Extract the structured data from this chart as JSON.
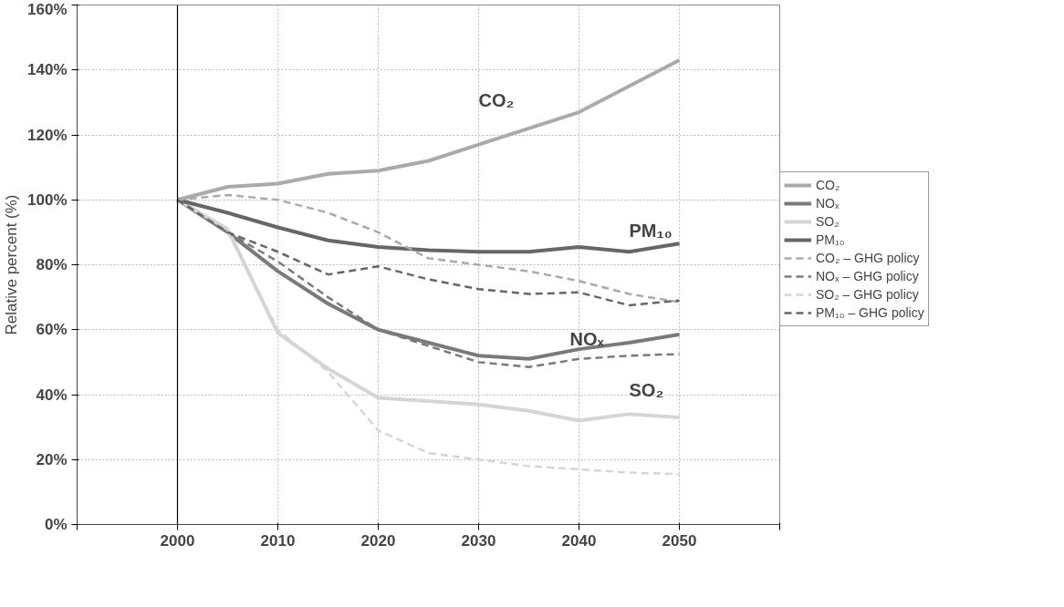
{
  "chart_data": {
    "type": "line",
    "ylabel": "Relative percent (%)",
    "x": [
      2000,
      2005,
      2010,
      2015,
      2020,
      2025,
      2030,
      2035,
      2040,
      2045,
      2050
    ],
    "series": [
      {
        "name": "CO₂",
        "color": "#aaaaaa",
        "values": [
          100,
          104,
          105,
          108,
          109,
          112,
          117,
          122,
          127,
          135,
          143
        ]
      },
      {
        "name": "NOₓ",
        "color": "#7a7a7a",
        "values": [
          100,
          90,
          78,
          68,
          60,
          56,
          52,
          51,
          54,
          56,
          58.5
        ]
      },
      {
        "name": "SO₂",
        "color": "#d5d5d5",
        "values": [
          100,
          91,
          59,
          48,
          39,
          38,
          37,
          35,
          32,
          34,
          33
        ]
      },
      {
        "name": "PM₁₀",
        "color": "#666666",
        "values": [
          100,
          96,
          91.5,
          87.5,
          85.5,
          84.5,
          84,
          84,
          85.5,
          84,
          86.5
        ]
      },
      {
        "name": "CO₂ – GHG policy",
        "color": "#aaaaaa",
        "line_style": "dashed",
        "values": [
          100,
          101.5,
          100,
          96,
          90,
          82,
          80,
          78,
          75,
          71,
          68.5
        ]
      },
      {
        "name": "NOₓ – GHG policy",
        "color": "#7a7a7a",
        "line_style": "dashed",
        "values": [
          100,
          90,
          81,
          70,
          60,
          55,
          50,
          48.5,
          51,
          52,
          52.5
        ]
      },
      {
        "name": "SO₂ – GHG policy",
        "color": "#d5d5d5",
        "line_style": "dashed",
        "values": [
          100,
          90,
          60,
          47,
          29,
          22,
          20,
          18,
          17,
          16,
          15.5
        ]
      },
      {
        "name": "PM₁₀ – GHG policy",
        "color": "#666666",
        "line_style": "dashed",
        "values": [
          100,
          90,
          84,
          77,
          79.5,
          75.5,
          72.5,
          71,
          71.5,
          67.5,
          69
        ]
      }
    ],
    "xlim": [
      1990,
      2060
    ],
    "xticks": [
      {
        "value": 1990,
        "label": null
      },
      2000,
      2010,
      2020,
      2030,
      2040,
      2050,
      {
        "value": 2060,
        "label": null
      }
    ],
    "ylim": [
      0,
      160
    ],
    "yticks": [
      {
        "value": 0,
        "label": "0%"
      },
      {
        "value": 20,
        "label": "20%"
      },
      {
        "value": 40,
        "label": "40%"
      },
      {
        "value": 60,
        "label": "60%"
      },
      {
        "value": 80,
        "label": "80%"
      },
      {
        "value": 100,
        "label": "100%"
      },
      {
        "value": 120,
        "label": "120%"
      },
      {
        "value": 140,
        "label": "140%"
      },
      {
        "value": 160,
        "label": "160%"
      }
    ],
    "ref_lines": [
      {
        "axis": "x",
        "value": 2000,
        "label": null,
        "color": "#000000"
      }
    ],
    "annotations": [
      "CO₂",
      "NOₓ",
      "SO₂",
      "PM₁₀"
    ],
    "grid": true,
    "legend": "right",
    "line_style": "solid"
  }
}
